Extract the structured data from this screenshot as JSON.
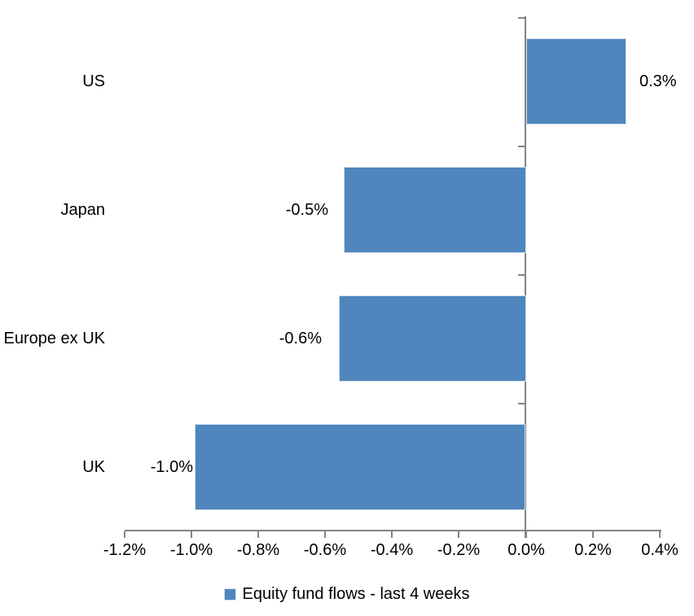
{
  "chart_data": {
    "type": "bar",
    "orientation": "horizontal",
    "title": "",
    "categories": [
      "US",
      "Japan",
      "Europe ex UK",
      "UK"
    ],
    "values": [
      0.3,
      -0.5,
      -0.6,
      -1.0
    ],
    "value_unit": "%",
    "data_labels": [
      "0.3%",
      "-0.5%",
      "-0.6%",
      "-1.0%"
    ],
    "bar_extents_pct": [
      0.3,
      -0.545,
      -0.56,
      -0.99
    ],
    "series": [
      {
        "name": "Equity fund flows - last 4 weeks"
      }
    ],
    "x_axis": {
      "tick_labels": [
        "-1.2%",
        "-1.0%",
        "-0.8%",
        "-0.6%",
        "-0.4%",
        "-0.2%",
        "0.0%",
        "0.2%",
        "0.4%"
      ],
      "tick_values": [
        -1.2,
        -1.0,
        -0.8,
        -0.6,
        -0.4,
        -0.2,
        0.0,
        0.2,
        0.4
      ],
      "range": [
        -1.2,
        0.4
      ]
    },
    "ylabel": "",
    "xlabel": "",
    "grid": false,
    "legend_position": "bottom",
    "colors": {
      "bar": "#4E86BD",
      "bar_border": "#D5E2F0",
      "axis": "#848484",
      "text": "#000000",
      "background": "#FFFFFF"
    }
  }
}
